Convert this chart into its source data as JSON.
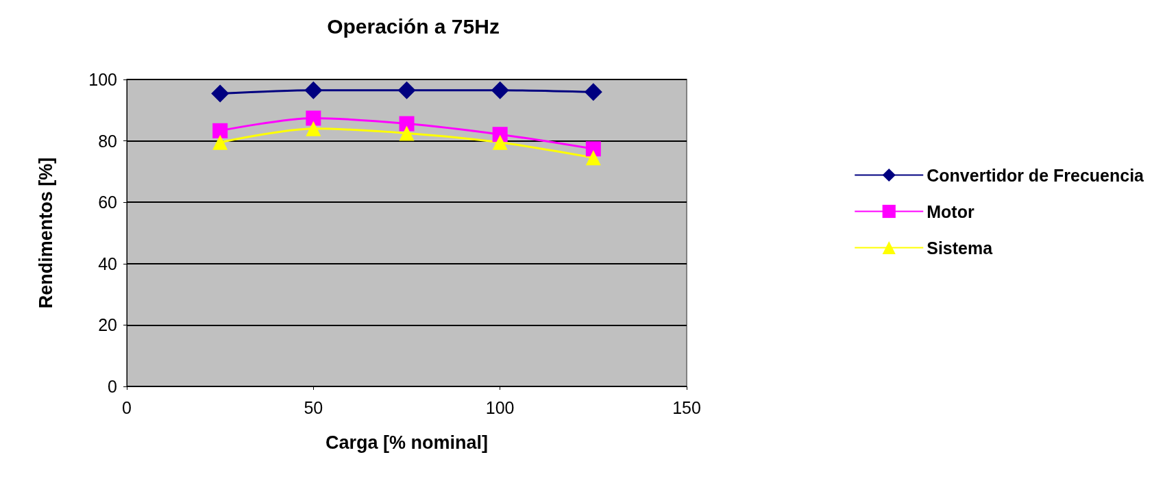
{
  "chart_data": {
    "type": "line",
    "title": "Operación a 75Hz",
    "xlabel": "Carga [% nominal]",
    "ylabel": "Rendimentos [%]",
    "x": [
      25,
      50,
      75,
      100,
      125
    ],
    "series": [
      {
        "name": "Convertidor de Frecuencia",
        "color": "#000080",
        "marker": "diamond",
        "values": [
          95.4,
          96.5,
          96.5,
          96.5,
          95.9
        ]
      },
      {
        "name": "Motor",
        "color": "#ff00ff",
        "marker": "square",
        "values": [
          83.3,
          87.4,
          85.6,
          82.1,
          77.4
        ]
      },
      {
        "name": "Sistema",
        "color": "#ffff00",
        "marker": "triangle",
        "values": [
          79.5,
          84,
          82.5,
          79.5,
          74.5
        ]
      }
    ],
    "xlim": [
      0,
      150
    ],
    "xticks": [
      0,
      50,
      100,
      150
    ],
    "ylim": [
      0,
      100
    ],
    "yticks": [
      0,
      20,
      40,
      60,
      80,
      100
    ],
    "grid": "y",
    "legend": "right"
  }
}
